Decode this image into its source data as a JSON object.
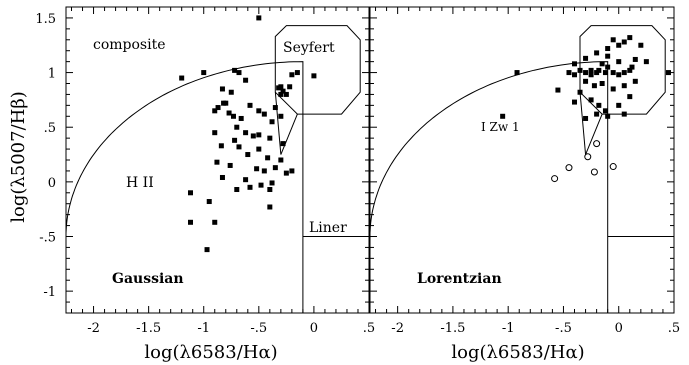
{
  "chart_data": [
    {
      "type": "scatter",
      "panel_label": "Gaussian",
      "xlabel": "log(λ6583/Hα)",
      "ylabel": "log(λ5007/Hβ)",
      "xlim": [
        -2.25,
        0.5
      ],
      "ylim": [
        -1.2,
        1.6
      ],
      "x_ticks": [
        "-2",
        "-1.5",
        "-1",
        "-.5",
        "0",
        ".5"
      ],
      "y_ticks": [
        "-1",
        "-.5",
        "0",
        ".5",
        "1",
        "1.5"
      ],
      "region_labels": {
        "composite": "composite",
        "hii": "H II",
        "seyfert": "Seyfert",
        "liner": "Liner"
      },
      "series": [
        {
          "marker": "filled-square",
          "points": [
            [
              -0.5,
              1.5
            ],
            [
              -1.2,
              0.95
            ],
            [
              -1.0,
              1.0
            ],
            [
              -0.72,
              1.02
            ],
            [
              -0.68,
              1.0
            ],
            [
              -0.62,
              0.93
            ],
            [
              -0.83,
              0.85
            ],
            [
              -0.75,
              0.82
            ],
            [
              -0.82,
              0.72
            ],
            [
              -0.87,
              0.68
            ],
            [
              -0.9,
              0.65
            ],
            [
              -0.8,
              0.72
            ],
            [
              -0.77,
              0.63
            ],
            [
              -0.73,
              0.6
            ],
            [
              -0.66,
              0.58
            ],
            [
              -0.58,
              0.7
            ],
            [
              -0.5,
              0.65
            ],
            [
              -0.45,
              0.62
            ],
            [
              -0.35,
              0.68
            ],
            [
              -0.3,
              0.6
            ],
            [
              -0.38,
              0.55
            ],
            [
              -0.9,
              0.45
            ],
            [
              -0.7,
              0.5
            ],
            [
              -0.62,
              0.45
            ],
            [
              -0.55,
              0.42
            ],
            [
              -0.4,
              0.4
            ],
            [
              -0.72,
              0.38
            ],
            [
              -0.84,
              0.33
            ],
            [
              -0.68,
              0.32
            ],
            [
              -0.5,
              0.3
            ],
            [
              -0.28,
              0.35
            ],
            [
              -0.6,
              0.25
            ],
            [
              -0.42,
              0.22
            ],
            [
              -0.3,
              0.2
            ],
            [
              -0.88,
              0.18
            ],
            [
              -0.76,
              0.15
            ],
            [
              -0.52,
              0.12
            ],
            [
              -0.45,
              0.1
            ],
            [
              -0.35,
              0.13
            ],
            [
              -0.25,
              0.08
            ],
            [
              -0.2,
              0.1
            ],
            [
              -0.83,
              0.04
            ],
            [
              -0.62,
              0.02
            ],
            [
              -0.48,
              -0.03
            ],
            [
              -0.38,
              -0.01
            ],
            [
              -0.7,
              -0.07
            ],
            [
              -0.58,
              -0.05
            ],
            [
              -0.4,
              -0.07
            ],
            [
              -1.12,
              -0.1
            ],
            [
              -0.95,
              -0.18
            ],
            [
              -0.4,
              -0.23
            ],
            [
              -1.12,
              -0.37
            ],
            [
              -0.9,
              -0.37
            ],
            [
              -0.97,
              -0.62
            ],
            [
              -0.32,
              0.86
            ],
            [
              -0.3,
              0.8
            ],
            [
              -0.28,
              0.83
            ],
            [
              -0.25,
              0.8
            ],
            [
              -0.2,
              0.98
            ],
            [
              -0.3,
              0.87
            ],
            [
              -0.15,
              1.0
            ],
            [
              0.0,
              0.97
            ],
            [
              -0.22,
              0.87
            ],
            [
              -0.5,
              0.43
            ]
          ]
        }
      ]
    },
    {
      "type": "scatter",
      "panel_label": "Lorentzian",
      "xlabel": "log(λ6583/Hα)",
      "xlim": [
        -2.25,
        0.5
      ],
      "ylim": [
        -1.2,
        1.6
      ],
      "x_ticks": [
        "-2",
        "-1.5",
        "-1",
        "-.5",
        "0",
        ".5"
      ],
      "annotation": "I Zw 1",
      "series": [
        {
          "marker": "filled-square",
          "points": [
            [
              -1.05,
              0.6
            ],
            [
              -0.92,
              1.0
            ],
            [
              -0.55,
              0.84
            ],
            [
              -0.45,
              1.0
            ],
            [
              -0.4,
              0.98
            ],
            [
              -0.35,
              1.02
            ],
            [
              -0.3,
              1.0
            ],
            [
              -0.25,
              0.98
            ],
            [
              -0.2,
              1.0
            ],
            [
              -0.18,
              1.02
            ],
            [
              -0.12,
              1.0
            ],
            [
              -0.1,
              1.05
            ],
            [
              -0.05,
              1.0
            ],
            [
              0.0,
              0.98
            ],
            [
              0.05,
              1.0
            ],
            [
              0.1,
              1.02
            ],
            [
              -0.4,
              1.08
            ],
            [
              -0.3,
              1.13
            ],
            [
              -0.2,
              1.18
            ],
            [
              -0.1,
              1.22
            ],
            [
              0.0,
              1.25
            ],
            [
              -0.05,
              1.3
            ],
            [
              0.05,
              1.28
            ],
            [
              0.1,
              1.32
            ],
            [
              0.2,
              1.25
            ],
            [
              -0.3,
              0.92
            ],
            [
              -0.22,
              0.88
            ],
            [
              -0.15,
              0.9
            ],
            [
              -0.05,
              0.85
            ],
            [
              0.05,
              0.88
            ],
            [
              -0.35,
              0.82
            ],
            [
              -0.25,
              0.75
            ],
            [
              -0.4,
              0.73
            ],
            [
              -0.18,
              0.7
            ],
            [
              -0.12,
              0.65
            ],
            [
              -0.3,
              0.58
            ],
            [
              0.1,
              0.78
            ],
            [
              0.15,
              0.92
            ],
            [
              0.0,
              0.7
            ],
            [
              -0.2,
              0.62
            ],
            [
              -0.1,
              0.6
            ],
            [
              0.05,
              0.62
            ],
            [
              -0.25,
              1.02
            ],
            [
              -0.15,
              1.08
            ],
            [
              0.45,
              1.0
            ],
            [
              -0.1,
              1.15
            ],
            [
              0.0,
              1.1
            ],
            [
              0.15,
              1.12
            ],
            [
              0.25,
              1.1
            ],
            [
              0.12,
              1.05
            ]
          ]
        },
        {
          "marker": "open-circle",
          "points": [
            [
              -0.58,
              0.03
            ],
            [
              -0.45,
              0.13
            ],
            [
              -0.28,
              0.23
            ],
            [
              -0.2,
              0.35
            ],
            [
              -0.22,
              0.09
            ],
            [
              -0.05,
              0.14
            ]
          ]
        }
      ]
    }
  ]
}
